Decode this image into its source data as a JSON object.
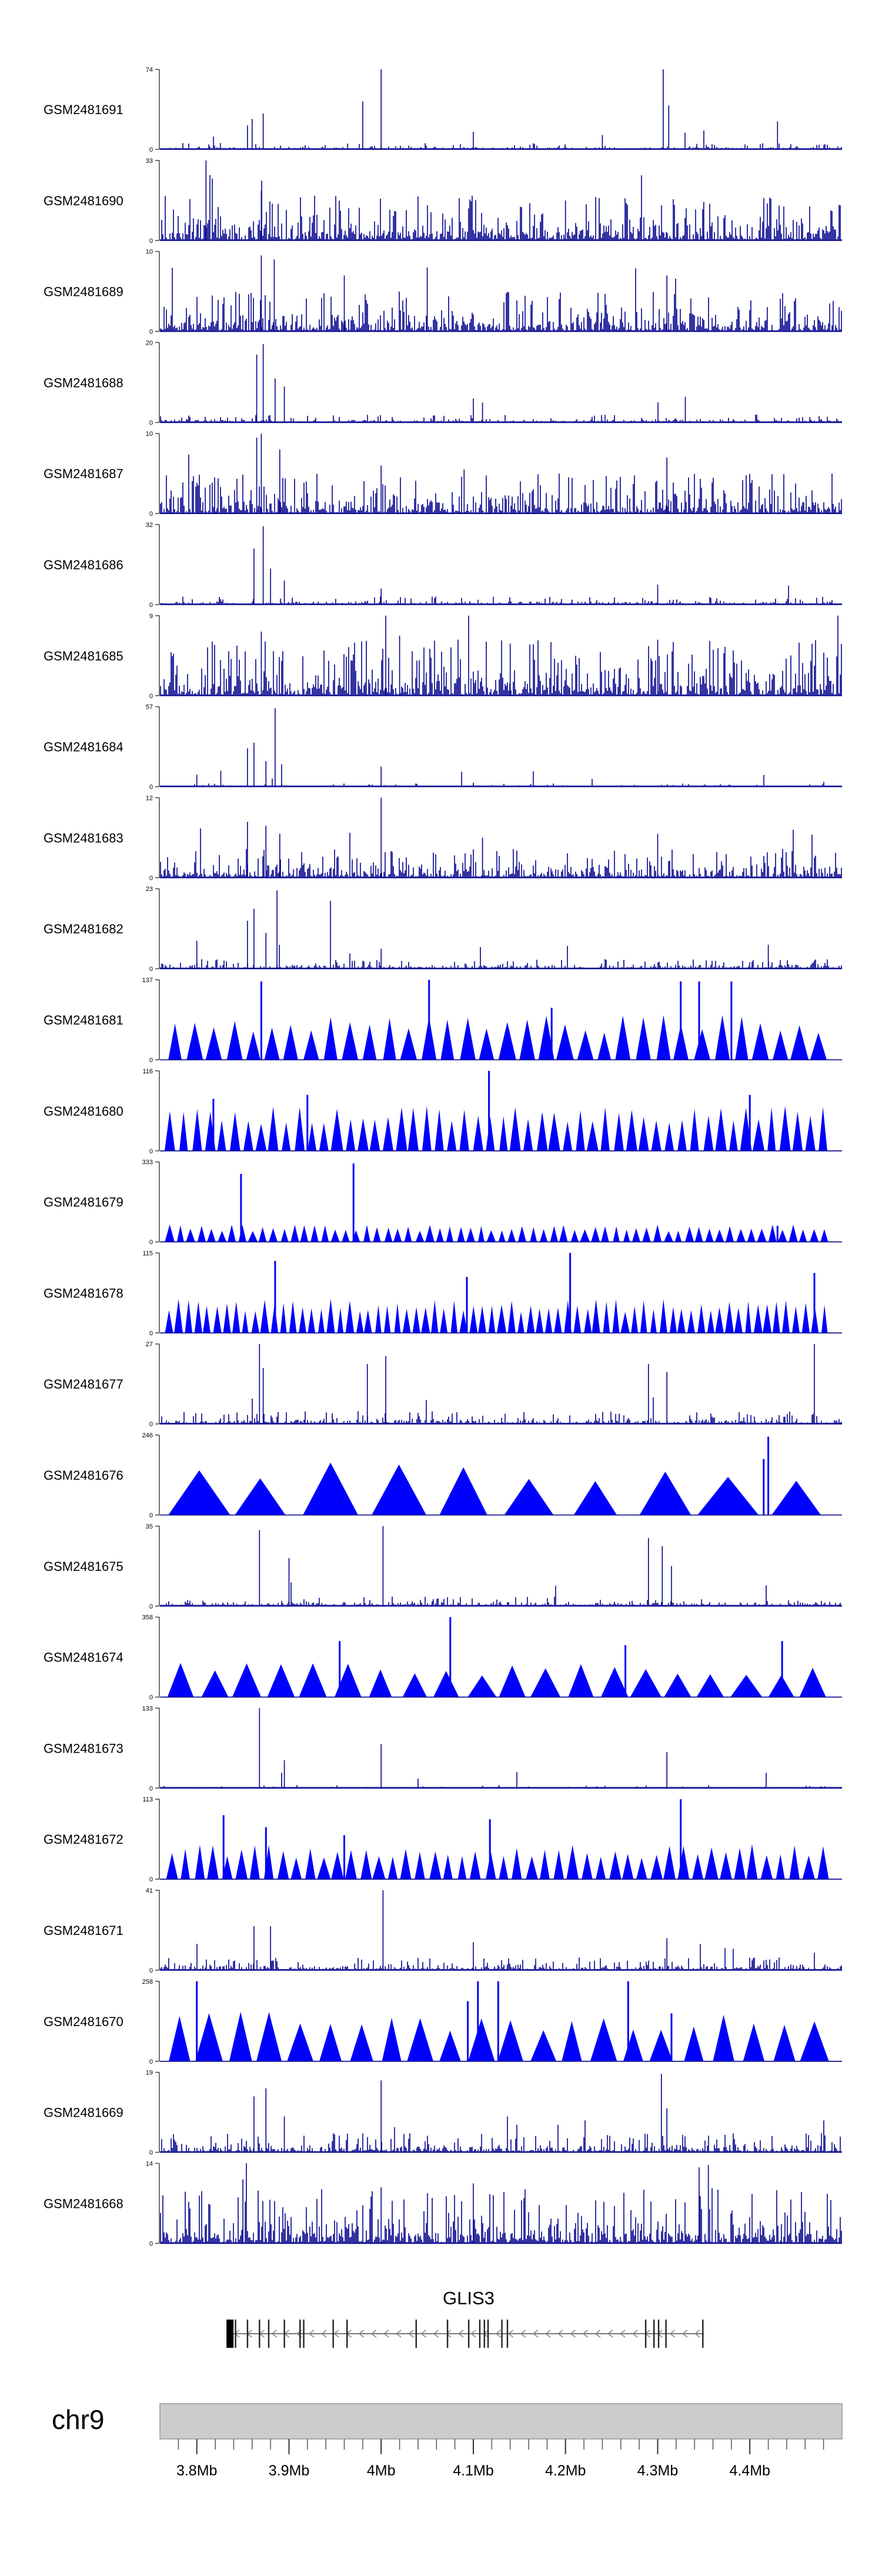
{
  "chart_data": {
    "type": "area",
    "title": "",
    "chromosome": "chr9",
    "xlim": [
      3.76,
      4.5
    ],
    "x_unit": "Mb",
    "x_ticks": [
      3.8,
      3.9,
      4.0,
      4.1,
      4.2,
      4.3,
      4.4
    ],
    "x_tick_labels": [
      "3.8Mb",
      "3.9Mb",
      "4Mb",
      "4.1Mb",
      "4.2Mb",
      "4.3Mb",
      "4.4Mb"
    ],
    "gene": {
      "name": "GLIS3",
      "start": 3.835,
      "end": 4.35,
      "exons": [
        3.836,
        3.842,
        3.855,
        3.868,
        3.878,
        3.895,
        3.912,
        3.916,
        3.948,
        3.963,
        4.038,
        4.072,
        4.095,
        4.107,
        4.112,
        4.116,
        4.131,
        4.137,
        4.287,
        4.296,
        4.301,
        4.309,
        4.349
      ]
    },
    "series": [
      {
        "name": "GSM2481691",
        "ymax": 74,
        "style": "bars",
        "density": 0.35,
        "base": 0.04,
        "peaks": [
          [
            3.855,
            0.3
          ],
          [
            3.86,
            0.38
          ],
          [
            3.872,
            0.45
          ],
          [
            3.98,
            0.6
          ],
          [
            4.0,
            1.0
          ],
          [
            4.1,
            0.22
          ],
          [
            4.24,
            0.18
          ],
          [
            4.306,
            1.0
          ],
          [
            4.312,
            0.55
          ],
          [
            4.43,
            0.35
          ]
        ]
      },
      {
        "name": "GSM2481690",
        "ymax": 33,
        "style": "bars",
        "density": 0.75,
        "base": 0.28,
        "peaks": [
          [
            3.81,
            1.0
          ],
          [
            3.87,
            0.62
          ],
          [
            4.04,
            0.55
          ],
          [
            4.2,
            0.5
          ],
          [
            4.35,
            0.48
          ]
        ]
      },
      {
        "name": "GSM2481689",
        "ymax": 10,
        "style": "bars",
        "density": 0.8,
        "base": 0.25,
        "peaks": [
          [
            3.87,
            0.95
          ],
          [
            3.884,
            0.9
          ],
          [
            3.96,
            0.7
          ],
          [
            4.05,
            0.8
          ],
          [
            4.31,
            0.7
          ]
        ]
      },
      {
        "name": "GSM2481688",
        "ymax": 20,
        "style": "bars",
        "density": 0.45,
        "base": 0.05,
        "peaks": [
          [
            3.865,
            0.85
          ],
          [
            3.872,
            0.98
          ],
          [
            3.885,
            0.55
          ],
          [
            3.895,
            0.45
          ],
          [
            4.1,
            0.3
          ],
          [
            4.11,
            0.25
          ],
          [
            4.33,
            0.32
          ]
        ]
      },
      {
        "name": "GSM2481687",
        "ymax": 10,
        "style": "bars",
        "density": 0.8,
        "base": 0.25,
        "peaks": [
          [
            3.865,
            0.95
          ],
          [
            3.87,
            1.0
          ],
          [
            3.89,
            0.8
          ],
          [
            4.0,
            0.6
          ],
          [
            4.09,
            0.55
          ],
          [
            4.31,
            0.7
          ]
        ]
      },
      {
        "name": "GSM2481686",
        "ymax": 32,
        "style": "bars",
        "density": 0.45,
        "base": 0.05,
        "peaks": [
          [
            3.862,
            0.7
          ],
          [
            3.872,
            0.98
          ],
          [
            3.88,
            0.45
          ],
          [
            3.895,
            0.3
          ],
          [
            4.0,
            0.2
          ],
          [
            4.3,
            0.25
          ]
        ]
      },
      {
        "name": "GSM2481685",
        "ymax": 9,
        "style": "bars",
        "density": 0.85,
        "base": 0.35,
        "peaks": [
          [
            3.87,
            0.8
          ],
          [
            4.005,
            1.0
          ],
          [
            4.02,
            0.75
          ],
          [
            4.14,
            0.65
          ],
          [
            4.3,
            0.7
          ]
        ]
      },
      {
        "name": "GSM2481684",
        "ymax": 57,
        "style": "bars",
        "density": 0.35,
        "base": 0.02,
        "peaks": [
          [
            3.8,
            0.15
          ],
          [
            3.826,
            0.2
          ],
          [
            3.855,
            0.48
          ],
          [
            3.862,
            0.55
          ],
          [
            3.875,
            0.32
          ],
          [
            3.885,
            0.98
          ],
          [
            3.892,
            0.28
          ],
          [
            4.0,
            0.25
          ],
          [
            4.1,
            0.05
          ]
        ]
      },
      {
        "name": "GSM2481683",
        "ymax": 12,
        "style": "bars",
        "density": 0.75,
        "base": 0.18,
        "peaks": [
          [
            3.855,
            0.7
          ],
          [
            3.875,
            0.65
          ],
          [
            3.89,
            0.55
          ],
          [
            4.0,
            1.0
          ],
          [
            4.11,
            0.5
          ],
          [
            4.3,
            0.55
          ]
        ]
      },
      {
        "name": "GSM2481682",
        "ymax": 23,
        "style": "bars",
        "density": 0.5,
        "base": 0.06,
        "peaks": [
          [
            3.8,
            0.35
          ],
          [
            3.855,
            0.6
          ],
          [
            3.862,
            0.75
          ],
          [
            3.875,
            0.45
          ],
          [
            3.887,
            0.98
          ],
          [
            3.945,
            0.85
          ],
          [
            4.0,
            0.25
          ],
          [
            4.42,
            0.3
          ]
        ]
      },
      {
        "name": "GSM2481681",
        "ymax": 137,
        "style": "tents",
        "count": 34,
        "base": 0.45,
        "peaks": [
          [
            3.87,
            0.98
          ],
          [
            4.052,
            1.0
          ],
          [
            4.185,
            0.65
          ],
          [
            4.325,
            0.98
          ],
          [
            4.345,
            0.98
          ],
          [
            4.38,
            0.98
          ]
        ]
      },
      {
        "name": "GSM2481680",
        "ymax": 116,
        "style": "tents",
        "count": 52,
        "base": 0.45,
        "peaks": [
          [
            3.818,
            0.65
          ],
          [
            3.92,
            0.7
          ],
          [
            4.117,
            1.0
          ],
          [
            4.4,
            0.7
          ]
        ]
      },
      {
        "name": "GSM2481679",
        "ymax": 333,
        "style": "tents",
        "count": 64,
        "base": 0.18,
        "peaks": [
          [
            3.848,
            0.85
          ],
          [
            3.97,
            0.98
          ],
          [
            4.43,
            0.2
          ]
        ]
      },
      {
        "name": "GSM2481678",
        "ymax": 115,
        "style": "tents",
        "count": 70,
        "base": 0.35,
        "peaks": [
          [
            3.885,
            0.9
          ],
          [
            4.093,
            0.7
          ],
          [
            4.205,
            1.0
          ],
          [
            4.47,
            0.75
          ]
        ]
      },
      {
        "name": "GSM2481677",
        "ymax": 27,
        "style": "bars",
        "density": 0.55,
        "base": 0.08,
        "peaks": [
          [
            3.868,
            1.0
          ],
          [
            3.872,
            0.7
          ],
          [
            3.985,
            0.75
          ],
          [
            4.005,
            0.85
          ],
          [
            4.29,
            0.75
          ],
          [
            4.31,
            0.65
          ],
          [
            4.47,
            1.0
          ]
        ]
      },
      {
        "name": "GSM2481676",
        "ymax": 246,
        "style": "tents",
        "count": 10,
        "base": 0.55,
        "peaks": [
          [
            4.415,
            0.7
          ],
          [
            4.42,
            0.98
          ]
        ]
      },
      {
        "name": "GSM2481675",
        "ymax": 35,
        "style": "bars",
        "density": 0.5,
        "base": 0.06,
        "peaks": [
          [
            3.868,
            0.95
          ],
          [
            3.9,
            0.6
          ],
          [
            4.002,
            1.0
          ],
          [
            4.29,
            0.85
          ],
          [
            4.305,
            0.75
          ],
          [
            4.315,
            0.5
          ]
        ]
      },
      {
        "name": "GSM2481674",
        "ymax": 358,
        "style": "tents",
        "count": 20,
        "base": 0.35,
        "peaks": [
          [
            3.955,
            0.7
          ],
          [
            4.075,
            1.0
          ],
          [
            4.265,
            0.65
          ],
          [
            4.435,
            0.7
          ]
        ]
      },
      {
        "name": "GSM2481673",
        "ymax": 133,
        "style": "bars",
        "density": 0.3,
        "base": 0.02,
        "peaks": [
          [
            3.868,
            1.0
          ],
          [
            3.895,
            0.35
          ],
          [
            4.0,
            0.55
          ],
          [
            4.04,
            0.12
          ],
          [
            4.31,
            0.45
          ]
        ]
      },
      {
        "name": "GSM2481672",
        "ymax": 113,
        "style": "tents",
        "count": 48,
        "base": 0.35,
        "peaks": [
          [
            3.829,
            0.8
          ],
          [
            3.875,
            0.65
          ],
          [
            3.96,
            0.55
          ],
          [
            4.118,
            0.75
          ],
          [
            4.325,
            1.0
          ]
        ]
      },
      {
        "name": "GSM2481671",
        "ymax": 41,
        "style": "bars",
        "density": 0.55,
        "base": 0.08,
        "peaks": [
          [
            3.862,
            0.55
          ],
          [
            3.88,
            0.55
          ],
          [
            4.002,
            1.0
          ],
          [
            4.1,
            0.35
          ],
          [
            4.31,
            0.4
          ]
        ]
      },
      {
        "name": "GSM2481670",
        "ymax": 258,
        "style": "tents",
        "count": 22,
        "base": 0.5,
        "peaks": [
          [
            3.8,
            1.0
          ],
          [
            4.094,
            0.75
          ],
          [
            4.105,
            1.0
          ],
          [
            4.127,
            1.0
          ],
          [
            4.268,
            1.0
          ],
          [
            4.315,
            0.6
          ]
        ]
      },
      {
        "name": "GSM2481669",
        "ymax": 19,
        "style": "bars",
        "density": 0.6,
        "base": 0.12,
        "peaks": [
          [
            3.862,
            0.7
          ],
          [
            3.875,
            0.8
          ],
          [
            3.895,
            0.45
          ],
          [
            4.0,
            0.9
          ],
          [
            4.304,
            0.98
          ],
          [
            4.31,
            0.55
          ]
        ]
      },
      {
        "name": "GSM2481668",
        "ymax": 14,
        "style": "bars",
        "density": 0.7,
        "base": 0.35,
        "peaks": [
          [
            3.85,
            0.8
          ],
          [
            4.0,
            0.7
          ],
          [
            4.1,
            0.75
          ],
          [
            4.345,
            0.95
          ],
          [
            4.355,
            0.98
          ]
        ]
      }
    ]
  }
}
